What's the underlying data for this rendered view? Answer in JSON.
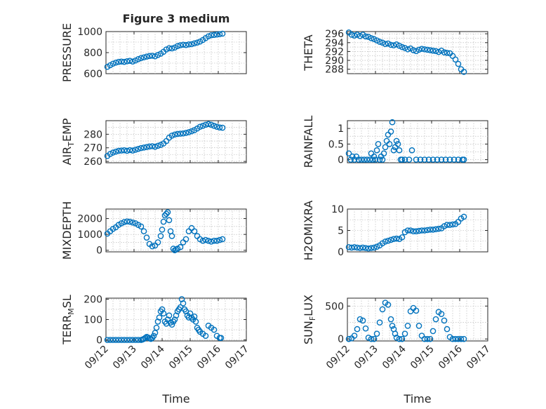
{
  "title": "Figure 3 medium",
  "marker_color": "#0072BD",
  "time_labels": [
    "09/12",
    "09/13",
    "09/14",
    "09/15",
    "09/16",
    "09/17"
  ],
  "xlabel": "Time",
  "chart_data": [
    {
      "type": "scatter",
      "ylabel": "PRESSURE",
      "xlim": [
        0,
        5
      ],
      "ylim": [
        600,
        1000
      ],
      "yticks": [
        600,
        800,
        1000
      ],
      "title": "Figure 3 medium",
      "x": [
        0.05,
        0.15,
        0.25,
        0.35,
        0.45,
        0.55,
        0.65,
        0.75,
        0.85,
        0.95,
        1.05,
        1.15,
        1.25,
        1.35,
        1.45,
        1.55,
        1.65,
        1.75,
        1.85,
        1.95,
        2.05,
        2.15,
        2.25,
        2.35,
        2.45,
        2.55,
        2.65,
        2.75,
        2.85,
        2.95,
        3.05,
        3.15,
        3.25,
        3.35,
        3.45,
        3.55,
        3.65,
        3.75,
        3.85,
        3.95,
        4.05,
        4.15
      ],
      "values": [
        665,
        680,
        695,
        705,
        712,
        715,
        712,
        718,
        722,
        715,
        725,
        738,
        748,
        755,
        762,
        768,
        770,
        765,
        778,
        790,
        808,
        830,
        842,
        840,
        848,
        862,
        870,
        875,
        872,
        878,
        880,
        888,
        895,
        905,
        920,
        938,
        955,
        965,
        968,
        972,
        975,
        980
      ]
    },
    {
      "type": "scatter",
      "ylabel": "THETA",
      "xlim": [
        0,
        5
      ],
      "ylim": [
        287,
        296.5
      ],
      "yticks": [
        288,
        290,
        292,
        294,
        296
      ],
      "x": [
        0.05,
        0.15,
        0.25,
        0.35,
        0.45,
        0.55,
        0.65,
        0.75,
        0.85,
        0.95,
        1.05,
        1.15,
        1.25,
        1.35,
        1.45,
        1.55,
        1.65,
        1.75,
        1.85,
        1.95,
        2.05,
        2.15,
        2.25,
        2.35,
        2.45,
        2.55,
        2.65,
        2.75,
        2.85,
        2.95,
        3.05,
        3.15,
        3.25,
        3.35,
        3.45,
        3.55,
        3.65,
        3.75,
        3.85,
        3.95,
        4.05,
        4.15
      ],
      "values": [
        296.3,
        295.8,
        295.6,
        295.8,
        295.5,
        295.8,
        295.4,
        295.3,
        295.0,
        294.8,
        294.5,
        294.2,
        294.0,
        293.7,
        293.8,
        293.5,
        293.4,
        293.6,
        293.3,
        293.0,
        292.8,
        292.5,
        292.7,
        292.3,
        292.1,
        292.4,
        292.6,
        292.5,
        292.4,
        292.3,
        292.2,
        292.1,
        291.9,
        292.2,
        291.8,
        291.7,
        291.6,
        291.0,
        290.2,
        289.2,
        288.0,
        287.4
      ]
    },
    {
      "type": "scatter",
      "ylabel": "AIR_TEMP",
      "ylabel_display": "AIR",
      "ylabel_sub": "T",
      "ylabel_rest": "EMP",
      "xlim": [
        0,
        5
      ],
      "ylim": [
        259,
        290
      ],
      "yticks": [
        260,
        270,
        280
      ],
      "x": [
        0.05,
        0.15,
        0.25,
        0.35,
        0.45,
        0.55,
        0.65,
        0.75,
        0.85,
        0.95,
        1.05,
        1.15,
        1.25,
        1.35,
        1.45,
        1.55,
        1.65,
        1.75,
        1.85,
        1.95,
        2.05,
        2.15,
        2.25,
        2.35,
        2.45,
        2.55,
        2.65,
        2.75,
        2.85,
        2.95,
        3.05,
        3.15,
        3.25,
        3.35,
        3.45,
        3.55,
        3.65,
        3.75,
        3.85,
        3.95,
        4.05,
        4.15
      ],
      "values": [
        264,
        265.5,
        266.5,
        267.2,
        267.8,
        268.0,
        268.2,
        267.8,
        268.3,
        268.0,
        268.6,
        269.2,
        269.8,
        270.2,
        270.6,
        271.0,
        271.2,
        270.8,
        271.5,
        272.2,
        273.2,
        275.0,
        277.5,
        279.0,
        279.8,
        280.2,
        280.4,
        280.6,
        281.0,
        281.5,
        282.2,
        283.0,
        284.2,
        285.5,
        286.2,
        287.0,
        287.5,
        287.0,
        286.2,
        285.5,
        285.0,
        284.8
      ]
    },
    {
      "type": "scatter",
      "ylabel": "RAINFALL",
      "xlim": [
        0,
        5
      ],
      "ylim": [
        -0.1,
        1.25
      ],
      "yticks": [
        0,
        0.5,
        1
      ],
      "x": [
        0.05,
        0.12,
        0.18,
        0.25,
        0.32,
        0.4,
        0.5,
        0.6,
        0.7,
        0.8,
        0.85,
        0.9,
        0.95,
        1.0,
        1.05,
        1.1,
        1.15,
        1.2,
        1.25,
        1.3,
        1.35,
        1.4,
        1.45,
        1.5,
        1.55,
        1.6,
        1.65,
        1.7,
        1.75,
        1.8,
        1.85,
        1.9,
        1.95,
        2.05,
        2.2,
        2.3,
        2.45,
        2.6,
        2.75,
        2.9,
        3.05,
        3.2,
        3.35,
        3.5,
        3.65,
        3.8,
        3.95,
        4.1,
        4.15
      ],
      "values": [
        0.2,
        0,
        0.1,
        0,
        0.1,
        0,
        0,
        0,
        0,
        0,
        0.2,
        0,
        0.1,
        0,
        0.3,
        0.5,
        0,
        0.1,
        0,
        0.2,
        0.4,
        0.6,
        0.8,
        0.5,
        0.9,
        1.2,
        0.3,
        0.4,
        0.6,
        0.5,
        0.3,
        0,
        0,
        0,
        0,
        0.3,
        0,
        0,
        0,
        0,
        0,
        0,
        0,
        0,
        0,
        0,
        0,
        0,
        0
      ]
    },
    {
      "type": "scatter",
      "ylabel": "MIXDEPTH",
      "xlim": [
        0,
        5
      ],
      "ylim": [
        -100,
        2600
      ],
      "yticks": [
        0,
        1000,
        2000
      ],
      "x": [
        0.05,
        0.15,
        0.25,
        0.35,
        0.45,
        0.55,
        0.65,
        0.75,
        0.85,
        0.95,
        1.05,
        1.15,
        1.25,
        1.35,
        1.45,
        1.55,
        1.65,
        1.75,
        1.85,
        1.95,
        2.0,
        2.05,
        2.1,
        2.15,
        2.2,
        2.25,
        2.3,
        2.35,
        2.4,
        2.45,
        2.5,
        2.55,
        2.65,
        2.75,
        2.85,
        2.95,
        3.05,
        3.15,
        3.25,
        3.35,
        3.45,
        3.55,
        3.65,
        3.75,
        3.85,
        3.95,
        4.05,
        4.15
      ],
      "values": [
        1050,
        1200,
        1350,
        1450,
        1600,
        1700,
        1780,
        1820,
        1800,
        1750,
        1700,
        1600,
        1500,
        1200,
        800,
        400,
        250,
        300,
        500,
        900,
        1300,
        1800,
        2200,
        2300,
        2400,
        1900,
        1200,
        900,
        100,
        0,
        50,
        100,
        200,
        500,
        700,
        1200,
        1400,
        1200,
        900,
        700,
        600,
        650,
        600,
        550,
        600,
        600,
        650,
        700
      ]
    },
    {
      "type": "scatter",
      "ylabel": "H2OMIXRA",
      "xlim": [
        0,
        5
      ],
      "ylim": [
        0,
        10
      ],
      "yticks": [
        0,
        5,
        10
      ],
      "x": [
        0.05,
        0.15,
        0.25,
        0.35,
        0.45,
        0.55,
        0.65,
        0.75,
        0.85,
        0.95,
        1.05,
        1.15,
        1.25,
        1.35,
        1.45,
        1.55,
        1.65,
        1.75,
        1.85,
        1.95,
        2.05,
        2.15,
        2.25,
        2.35,
        2.45,
        2.55,
        2.65,
        2.75,
        2.85,
        2.95,
        3.05,
        3.15,
        3.25,
        3.35,
        3.45,
        3.55,
        3.65,
        3.75,
        3.85,
        3.95,
        4.05,
        4.15
      ],
      "values": [
        1.1,
        1.0,
        1.1,
        1.0,
        0.9,
        1.0,
        0.9,
        0.8,
        0.9,
        1.0,
        1.2,
        1.5,
        2.0,
        2.4,
        2.6,
        2.8,
        3.0,
        3.1,
        3.0,
        3.4,
        4.6,
        5.0,
        5.0,
        4.8,
        4.8,
        4.9,
        5.0,
        5.0,
        5.1,
        5.2,
        5.2,
        5.3,
        5.4,
        5.5,
        6.0,
        6.3,
        6.3,
        6.4,
        6.5,
        7.0,
        7.8,
        8.2
      ]
    },
    {
      "type": "scatter",
      "ylabel": "TERR_MSL",
      "ylabel_display": "TERR",
      "ylabel_sub": "M",
      "ylabel_rest": "SL",
      "xlim": [
        0,
        5
      ],
      "ylim": [
        -5,
        205
      ],
      "yticks": [
        0,
        100,
        200
      ],
      "x": [
        0.05,
        0.15,
        0.25,
        0.35,
        0.45,
        0.55,
        0.65,
        0.75,
        0.85,
        0.95,
        1.05,
        1.15,
        1.25,
        1.3,
        1.35,
        1.4,
        1.45,
        1.5,
        1.55,
        1.6,
        1.65,
        1.7,
        1.75,
        1.8,
        1.85,
        1.9,
        1.95,
        2.0,
        2.05,
        2.1,
        2.15,
        2.2,
        2.25,
        2.3,
        2.35,
        2.4,
        2.45,
        2.5,
        2.55,
        2.6,
        2.65,
        2.7,
        2.75,
        2.8,
        2.85,
        2.9,
        2.95,
        3.0,
        3.05,
        3.1,
        3.15,
        3.2,
        3.25,
        3.3,
        3.35,
        3.45,
        3.55,
        3.65,
        3.75,
        3.85,
        3.95,
        4.05,
        4.1
      ],
      "values": [
        0,
        0,
        0,
        0,
        0,
        0,
        0,
        0,
        0,
        0,
        0,
        0,
        0,
        2,
        5,
        10,
        15,
        12,
        8,
        5,
        10,
        20,
        35,
        60,
        90,
        110,
        140,
        150,
        130,
        90,
        80,
        100,
        120,
        85,
        75,
        90,
        100,
        120,
        140,
        150,
        160,
        200,
        180,
        150,
        140,
        120,
        110,
        130,
        110,
        100,
        115,
        90,
        60,
        50,
        40,
        30,
        20,
        70,
        60,
        50,
        20,
        10,
        10
      ]
    },
    {
      "type": "scatter",
      "ylabel": "SUN_FLUX",
      "ylabel_display": "SUN",
      "ylabel_sub": "F",
      "ylabel_rest": "LUX",
      "xlim": [
        0,
        5
      ],
      "ylim": [
        -30,
        620
      ],
      "yticks": [
        0,
        500
      ],
      "x": [
        0.05,
        0.15,
        0.25,
        0.35,
        0.45,
        0.55,
        0.65,
        0.75,
        0.85,
        0.95,
        1.05,
        1.15,
        1.25,
        1.35,
        1.45,
        1.55,
        1.6,
        1.65,
        1.7,
        1.75,
        1.85,
        1.95,
        2.05,
        2.15,
        2.25,
        2.35,
        2.45,
        2.55,
        2.65,
        2.75,
        2.85,
        2.95,
        3.05,
        3.15,
        3.25,
        3.35,
        3.45,
        3.55,
        3.65,
        3.75,
        3.85,
        3.95,
        4.05,
        4.15
      ],
      "values": [
        0,
        10,
        50,
        150,
        300,
        280,
        160,
        20,
        0,
        0,
        80,
        250,
        450,
        550,
        520,
        300,
        200,
        150,
        80,
        20,
        0,
        0,
        80,
        200,
        420,
        470,
        430,
        200,
        50,
        0,
        0,
        0,
        120,
        300,
        410,
        380,
        280,
        150,
        30,
        0,
        0,
        0,
        0,
        0
      ]
    }
  ]
}
